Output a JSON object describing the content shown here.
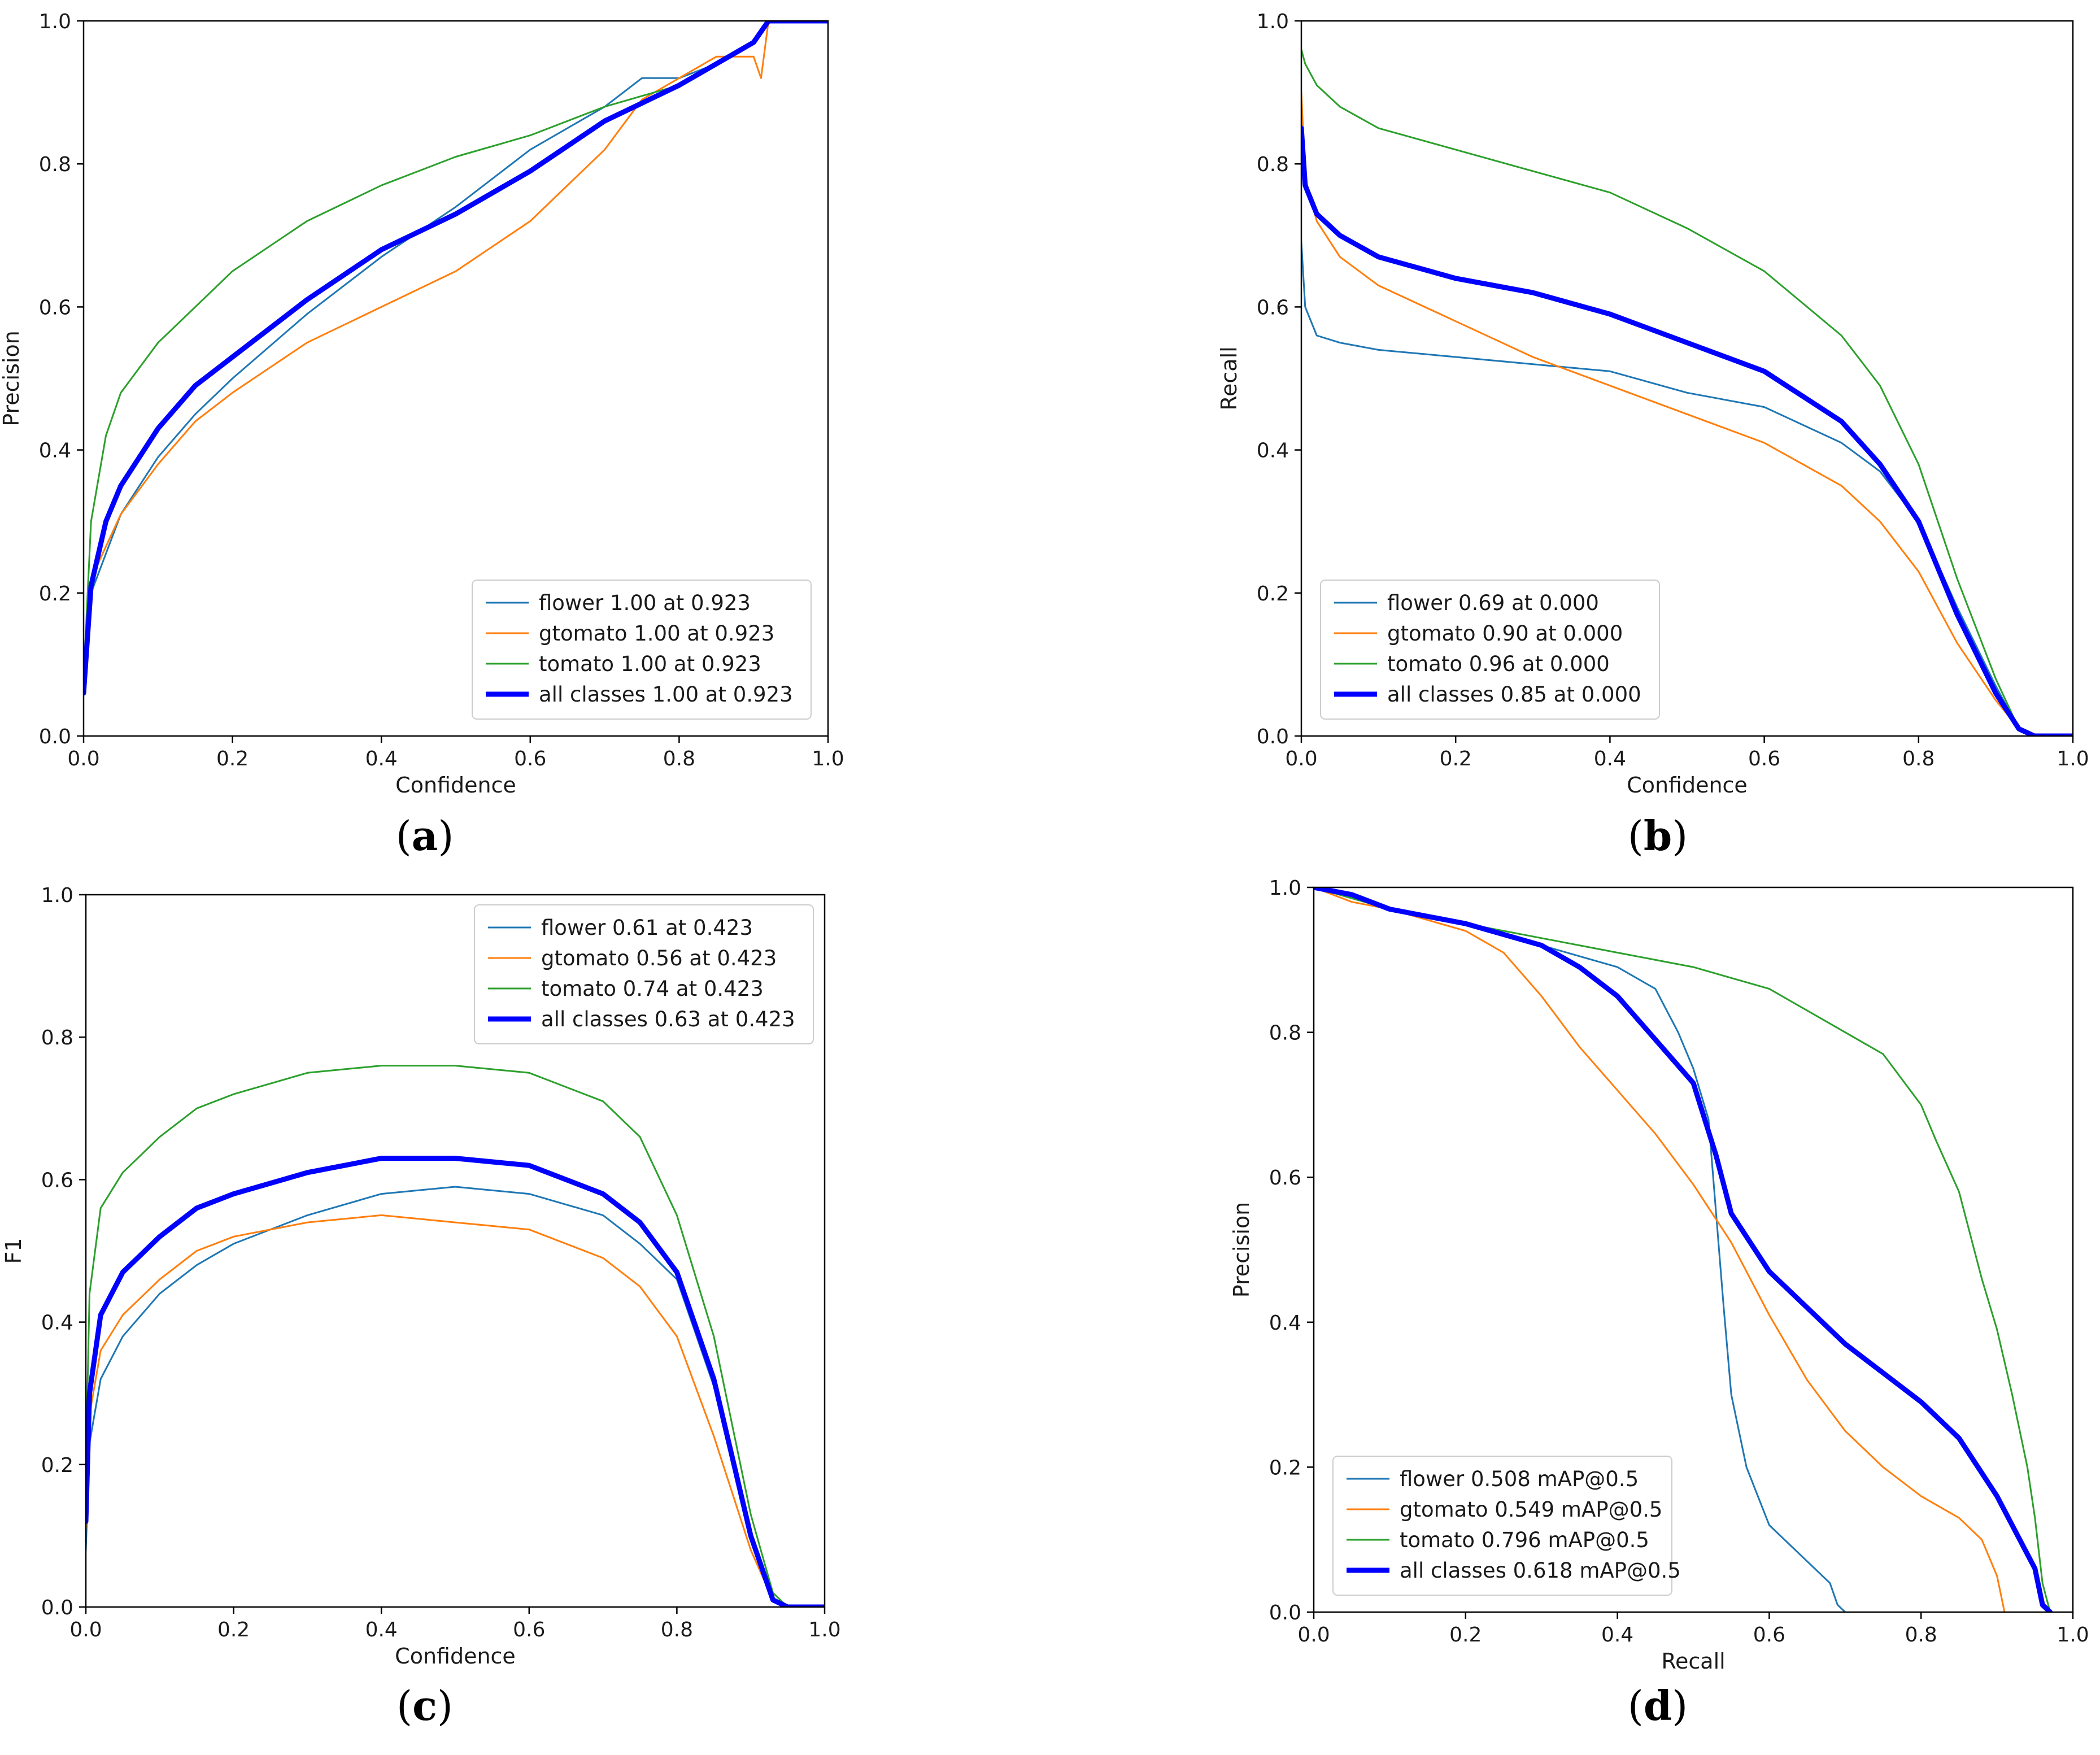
{
  "colors": {
    "flower": "#1f77b4",
    "gtomato": "#ff7f0e",
    "tomato": "#2ca02c",
    "all_classes": "#0000ff"
  },
  "chart_data": [
    {
      "id": "a",
      "type": "line",
      "caption": "a",
      "xlabel": "Confidence",
      "ylabel": "Precision",
      "xlim": [
        0,
        1
      ],
      "ylim": [
        0,
        1
      ],
      "xticks": [
        "0.0",
        "0.2",
        "0.4",
        "0.6",
        "0.8",
        "1.0"
      ],
      "yticks": [
        "0.0",
        "0.2",
        "0.4",
        "0.6",
        "0.8",
        "1.0"
      ],
      "legend_position": "bottom-right",
      "series": [
        {
          "name": "flower",
          "label": "flower 1.00 at 0.923",
          "color": "#1f77b4",
          "x": [
            0,
            0.01,
            0.05,
            0.1,
            0.15,
            0.2,
            0.3,
            0.4,
            0.5,
            0.6,
            0.7,
            0.75,
            0.8,
            0.85,
            0.9,
            0.92,
            1.0
          ],
          "y": [
            0.1,
            0.2,
            0.31,
            0.39,
            0.45,
            0.5,
            0.59,
            0.67,
            0.74,
            0.82,
            0.88,
            0.92,
            0.92,
            0.94,
            0.97,
            1.0,
            1.0
          ]
        },
        {
          "name": "gtomato",
          "label": "gtomato 1.00 at 0.923",
          "color": "#ff7f0e",
          "x": [
            0,
            0.01,
            0.05,
            0.1,
            0.15,
            0.2,
            0.3,
            0.4,
            0.5,
            0.6,
            0.7,
            0.75,
            0.8,
            0.85,
            0.9,
            0.91,
            0.92,
            1.0
          ],
          "y": [
            0.1,
            0.22,
            0.31,
            0.38,
            0.44,
            0.48,
            0.55,
            0.6,
            0.65,
            0.72,
            0.82,
            0.89,
            0.92,
            0.95,
            0.95,
            0.92,
            1.0,
            1.0
          ]
        },
        {
          "name": "tomato",
          "label": "tomato 1.00 at 0.923",
          "color": "#2ca02c",
          "x": [
            0,
            0.01,
            0.03,
            0.05,
            0.1,
            0.15,
            0.2,
            0.3,
            0.4,
            0.5,
            0.6,
            0.7,
            0.8,
            0.85,
            0.9,
            0.92,
            1.0
          ],
          "y": [
            0.08,
            0.3,
            0.42,
            0.48,
            0.55,
            0.6,
            0.65,
            0.72,
            0.77,
            0.81,
            0.84,
            0.88,
            0.91,
            0.94,
            0.97,
            1.0,
            1.0
          ]
        },
        {
          "name": "all classes",
          "label": "all classes 1.00 at 0.923",
          "color": "#0000ff",
          "x": [
            0,
            0.01,
            0.03,
            0.05,
            0.1,
            0.15,
            0.2,
            0.3,
            0.4,
            0.5,
            0.6,
            0.7,
            0.8,
            0.85,
            0.9,
            0.92,
            1.0
          ],
          "y": [
            0.06,
            0.21,
            0.3,
            0.35,
            0.43,
            0.49,
            0.53,
            0.61,
            0.68,
            0.73,
            0.79,
            0.86,
            0.91,
            0.94,
            0.97,
            1.0,
            1.0
          ],
          "bold": true
        }
      ]
    },
    {
      "id": "b",
      "type": "line",
      "caption": "b",
      "xlabel": "Confidence",
      "ylabel": "Recall",
      "xlim": [
        0,
        1
      ],
      "ylim": [
        0,
        1
      ],
      "xticks": [
        "0.0",
        "0.2",
        "0.4",
        "0.6",
        "0.8",
        "1.0"
      ],
      "yticks": [
        "0.0",
        "0.2",
        "0.4",
        "0.6",
        "0.8",
        "1.0"
      ],
      "legend_position": "bottom-left",
      "series": [
        {
          "name": "flower",
          "label": "flower 0.69 at 0.000",
          "color": "#1f77b4",
          "x": [
            0,
            0.005,
            0.02,
            0.05,
            0.1,
            0.2,
            0.3,
            0.4,
            0.5,
            0.6,
            0.7,
            0.75,
            0.8,
            0.85,
            0.9,
            0.93,
            0.95,
            1.0
          ],
          "y": [
            0.69,
            0.6,
            0.56,
            0.55,
            0.54,
            0.53,
            0.52,
            0.51,
            0.48,
            0.46,
            0.41,
            0.37,
            0.3,
            0.18,
            0.07,
            0.01,
            0.0,
            0.0
          ]
        },
        {
          "name": "gtomato",
          "label": "gtomato 0.90 at 0.000",
          "color": "#ff7f0e",
          "x": [
            0,
            0.005,
            0.02,
            0.05,
            0.1,
            0.2,
            0.3,
            0.4,
            0.5,
            0.6,
            0.7,
            0.75,
            0.8,
            0.85,
            0.9,
            0.93,
            0.95,
            1.0
          ],
          "y": [
            0.9,
            0.78,
            0.72,
            0.67,
            0.63,
            0.58,
            0.53,
            0.49,
            0.45,
            0.41,
            0.35,
            0.3,
            0.23,
            0.13,
            0.05,
            0.01,
            0.0,
            0.0
          ]
        },
        {
          "name": "tomato",
          "label": "tomato 0.96 at 0.000",
          "color": "#2ca02c",
          "x": [
            0,
            0.005,
            0.02,
            0.05,
            0.1,
            0.2,
            0.3,
            0.4,
            0.5,
            0.6,
            0.7,
            0.75,
            0.8,
            0.85,
            0.9,
            0.93,
            0.95,
            1.0
          ],
          "y": [
            0.96,
            0.94,
            0.91,
            0.88,
            0.85,
            0.82,
            0.79,
            0.76,
            0.71,
            0.65,
            0.56,
            0.49,
            0.38,
            0.22,
            0.08,
            0.01,
            0.0,
            0.0
          ]
        },
        {
          "name": "all classes",
          "label": "all classes 0.85 at 0.000",
          "color": "#0000ff",
          "x": [
            0,
            0.005,
            0.02,
            0.05,
            0.1,
            0.2,
            0.3,
            0.4,
            0.5,
            0.6,
            0.7,
            0.75,
            0.8,
            0.85,
            0.9,
            0.93,
            0.95,
            1.0
          ],
          "y": [
            0.85,
            0.77,
            0.73,
            0.7,
            0.67,
            0.64,
            0.62,
            0.59,
            0.55,
            0.51,
            0.44,
            0.38,
            0.3,
            0.17,
            0.06,
            0.01,
            0.0,
            0.0
          ],
          "bold": true
        }
      ]
    },
    {
      "id": "c",
      "type": "line",
      "caption": "c",
      "xlabel": "Confidence",
      "ylabel": "F1",
      "xlim": [
        0,
        1
      ],
      "ylim": [
        0,
        1
      ],
      "xticks": [
        "0.0",
        "0.2",
        "0.4",
        "0.6",
        "0.8",
        "1.0"
      ],
      "yticks": [
        "0.0",
        "0.2",
        "0.4",
        "0.6",
        "0.8",
        "1.0"
      ],
      "legend_position": "top-right",
      "series": [
        {
          "name": "flower",
          "label": "flower 0.61 at 0.423",
          "color": "#1f77b4",
          "x": [
            0,
            0.005,
            0.02,
            0.05,
            0.1,
            0.15,
            0.2,
            0.3,
            0.4,
            0.5,
            0.6,
            0.7,
            0.75,
            0.8,
            0.85,
            0.9,
            0.93,
            0.95,
            1.0
          ],
          "y": [
            0.08,
            0.23,
            0.32,
            0.38,
            0.44,
            0.48,
            0.51,
            0.55,
            0.58,
            0.59,
            0.58,
            0.55,
            0.51,
            0.46,
            0.31,
            0.1,
            0.01,
            0.0,
            0.0
          ]
        },
        {
          "name": "gtomato",
          "label": "gtomato 0.56 at 0.423",
          "color": "#ff7f0e",
          "x": [
            0,
            0.005,
            0.02,
            0.05,
            0.1,
            0.15,
            0.2,
            0.3,
            0.4,
            0.5,
            0.6,
            0.7,
            0.75,
            0.8,
            0.85,
            0.9,
            0.93,
            0.95,
            1.0
          ],
          "y": [
            0.11,
            0.27,
            0.36,
            0.41,
            0.46,
            0.5,
            0.52,
            0.54,
            0.55,
            0.54,
            0.53,
            0.49,
            0.45,
            0.38,
            0.24,
            0.08,
            0.01,
            0.0,
            0.0
          ]
        },
        {
          "name": "tomato",
          "label": "tomato 0.74 at 0.423",
          "color": "#2ca02c",
          "x": [
            0,
            0.005,
            0.02,
            0.05,
            0.1,
            0.15,
            0.2,
            0.3,
            0.4,
            0.5,
            0.6,
            0.7,
            0.75,
            0.8,
            0.85,
            0.9,
            0.93,
            0.95,
            1.0
          ],
          "y": [
            0.2,
            0.44,
            0.56,
            0.61,
            0.66,
            0.7,
            0.72,
            0.75,
            0.76,
            0.76,
            0.75,
            0.71,
            0.66,
            0.55,
            0.38,
            0.13,
            0.02,
            0.0,
            0.0
          ]
        },
        {
          "name": "all classes",
          "label": "all classes 0.63 at 0.423",
          "color": "#0000ff",
          "x": [
            0,
            0.005,
            0.02,
            0.05,
            0.1,
            0.15,
            0.2,
            0.3,
            0.4,
            0.5,
            0.6,
            0.7,
            0.75,
            0.8,
            0.85,
            0.9,
            0.93,
            0.95,
            1.0
          ],
          "y": [
            0.12,
            0.3,
            0.41,
            0.47,
            0.52,
            0.56,
            0.58,
            0.61,
            0.63,
            0.63,
            0.62,
            0.58,
            0.54,
            0.47,
            0.32,
            0.1,
            0.01,
            0.0,
            0.0
          ],
          "bold": true
        }
      ]
    },
    {
      "id": "d",
      "type": "line",
      "caption": "d",
      "xlabel": "Recall",
      "ylabel": "Precision",
      "xlim": [
        0,
        1
      ],
      "ylim": [
        0,
        1
      ],
      "xticks": [
        "0.0",
        "0.2",
        "0.4",
        "0.6",
        "0.8",
        "1.0"
      ],
      "yticks": [
        "0.0",
        "0.2",
        "0.4",
        "0.6",
        "0.8",
        "1.0"
      ],
      "legend_position": "bottom-left",
      "series": [
        {
          "name": "flower",
          "label": "flower 0.508 mAP@0.5",
          "color": "#1f77b4",
          "x": [
            0,
            0.1,
            0.2,
            0.3,
            0.4,
            0.45,
            0.48,
            0.5,
            0.52,
            0.53,
            0.54,
            0.55,
            0.57,
            0.6,
            0.65,
            0.68,
            0.69,
            0.7
          ],
          "y": [
            1.0,
            0.97,
            0.95,
            0.92,
            0.89,
            0.86,
            0.8,
            0.75,
            0.68,
            0.55,
            0.42,
            0.3,
            0.2,
            0.12,
            0.07,
            0.04,
            0.01,
            0.0
          ]
        },
        {
          "name": "gtomato",
          "label": "gtomato 0.549 mAP@0.5",
          "color": "#ff7f0e",
          "x": [
            0,
            0.05,
            0.1,
            0.2,
            0.25,
            0.3,
            0.35,
            0.4,
            0.45,
            0.5,
            0.55,
            0.6,
            0.65,
            0.7,
            0.75,
            0.8,
            0.85,
            0.88,
            0.9,
            0.91
          ],
          "y": [
            1.0,
            0.98,
            0.97,
            0.94,
            0.91,
            0.85,
            0.78,
            0.72,
            0.66,
            0.59,
            0.51,
            0.41,
            0.32,
            0.25,
            0.2,
            0.16,
            0.13,
            0.1,
            0.05,
            0.0
          ]
        },
        {
          "name": "tomato",
          "label": "tomato 0.796 mAP@0.5",
          "color": "#2ca02c",
          "x": [
            0,
            0.1,
            0.2,
            0.3,
            0.4,
            0.5,
            0.6,
            0.65,
            0.7,
            0.75,
            0.8,
            0.82,
            0.85,
            0.88,
            0.9,
            0.92,
            0.94,
            0.95,
            0.96,
            0.97
          ],
          "y": [
            1.0,
            0.97,
            0.95,
            0.93,
            0.91,
            0.89,
            0.86,
            0.83,
            0.8,
            0.77,
            0.7,
            0.65,
            0.58,
            0.46,
            0.39,
            0.3,
            0.2,
            0.13,
            0.04,
            0.0
          ]
        },
        {
          "name": "all classes",
          "label": "all classes 0.618 mAP@0.5",
          "color": "#0000ff",
          "x": [
            0,
            0.05,
            0.1,
            0.2,
            0.3,
            0.35,
            0.4,
            0.45,
            0.5,
            0.53,
            0.55,
            0.6,
            0.65,
            0.7,
            0.75,
            0.8,
            0.85,
            0.9,
            0.95,
            0.96,
            0.97
          ],
          "y": [
            1.0,
            0.99,
            0.97,
            0.95,
            0.92,
            0.89,
            0.85,
            0.79,
            0.73,
            0.63,
            0.55,
            0.47,
            0.42,
            0.37,
            0.33,
            0.29,
            0.24,
            0.16,
            0.06,
            0.01,
            0.0
          ],
          "bold": true
        }
      ]
    }
  ]
}
